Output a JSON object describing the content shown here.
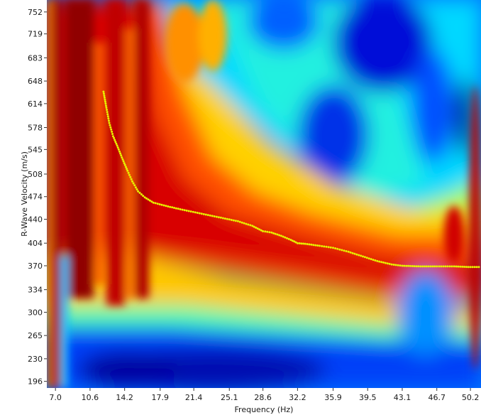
{
  "chart_data": {
    "type": "heatmap",
    "title": "",
    "xlabel": "Frequency (Hz)",
    "ylabel": "R-Wave Velocity (m/s)",
    "xlim": [
      6.1,
      51.3
    ],
    "ylim": [
      186,
      770
    ],
    "x_ticks": [
      "7.0",
      "10.6",
      "14.2",
      "17.9",
      "21.4",
      "25.1",
      "28.6",
      "32.2",
      "35.9",
      "39.5",
      "43.1",
      "46.7",
      "50.2"
    ],
    "y_ticks": [
      "752",
      "719",
      "683",
      "648",
      "614",
      "578",
      "545",
      "508",
      "474",
      "440",
      "404",
      "370",
      "334",
      "300",
      "265",
      "230",
      "196"
    ],
    "colormap": [
      "#00008f",
      "#0000ff",
      "#0060ff",
      "#00e0ff",
      "#60ff9f",
      "#f0ff10",
      "#ffb000",
      "#ff3000",
      "#c00000",
      "#800000"
    ],
    "picked_curve_color": "#e8f000",
    "picked_dispersion_curve": {
      "name": "",
      "x": [
        12.0,
        12.3,
        12.6,
        13.0,
        13.5,
        14.0,
        14.5,
        15.0,
        15.6,
        16.3,
        17.2,
        18.5,
        20.0,
        22.0,
        24.0,
        26.0,
        27.5,
        28.6,
        29.5,
        30.5,
        31.5,
        32.2,
        33.0,
        34.5,
        35.9,
        37.5,
        39.0,
        40.5,
        42.0,
        43.1,
        45.0,
        46.7,
        48.5,
        50.2,
        51.3
      ],
      "y": [
        632,
        608,
        585,
        565,
        548,
        530,
        513,
        497,
        482,
        473,
        465,
        460,
        455,
        449,
        443,
        437,
        430,
        422,
        420,
        415,
        409,
        404,
        403,
        400,
        397,
        391,
        384,
        377,
        372,
        370,
        369,
        369,
        369,
        368,
        368
      ]
    }
  }
}
